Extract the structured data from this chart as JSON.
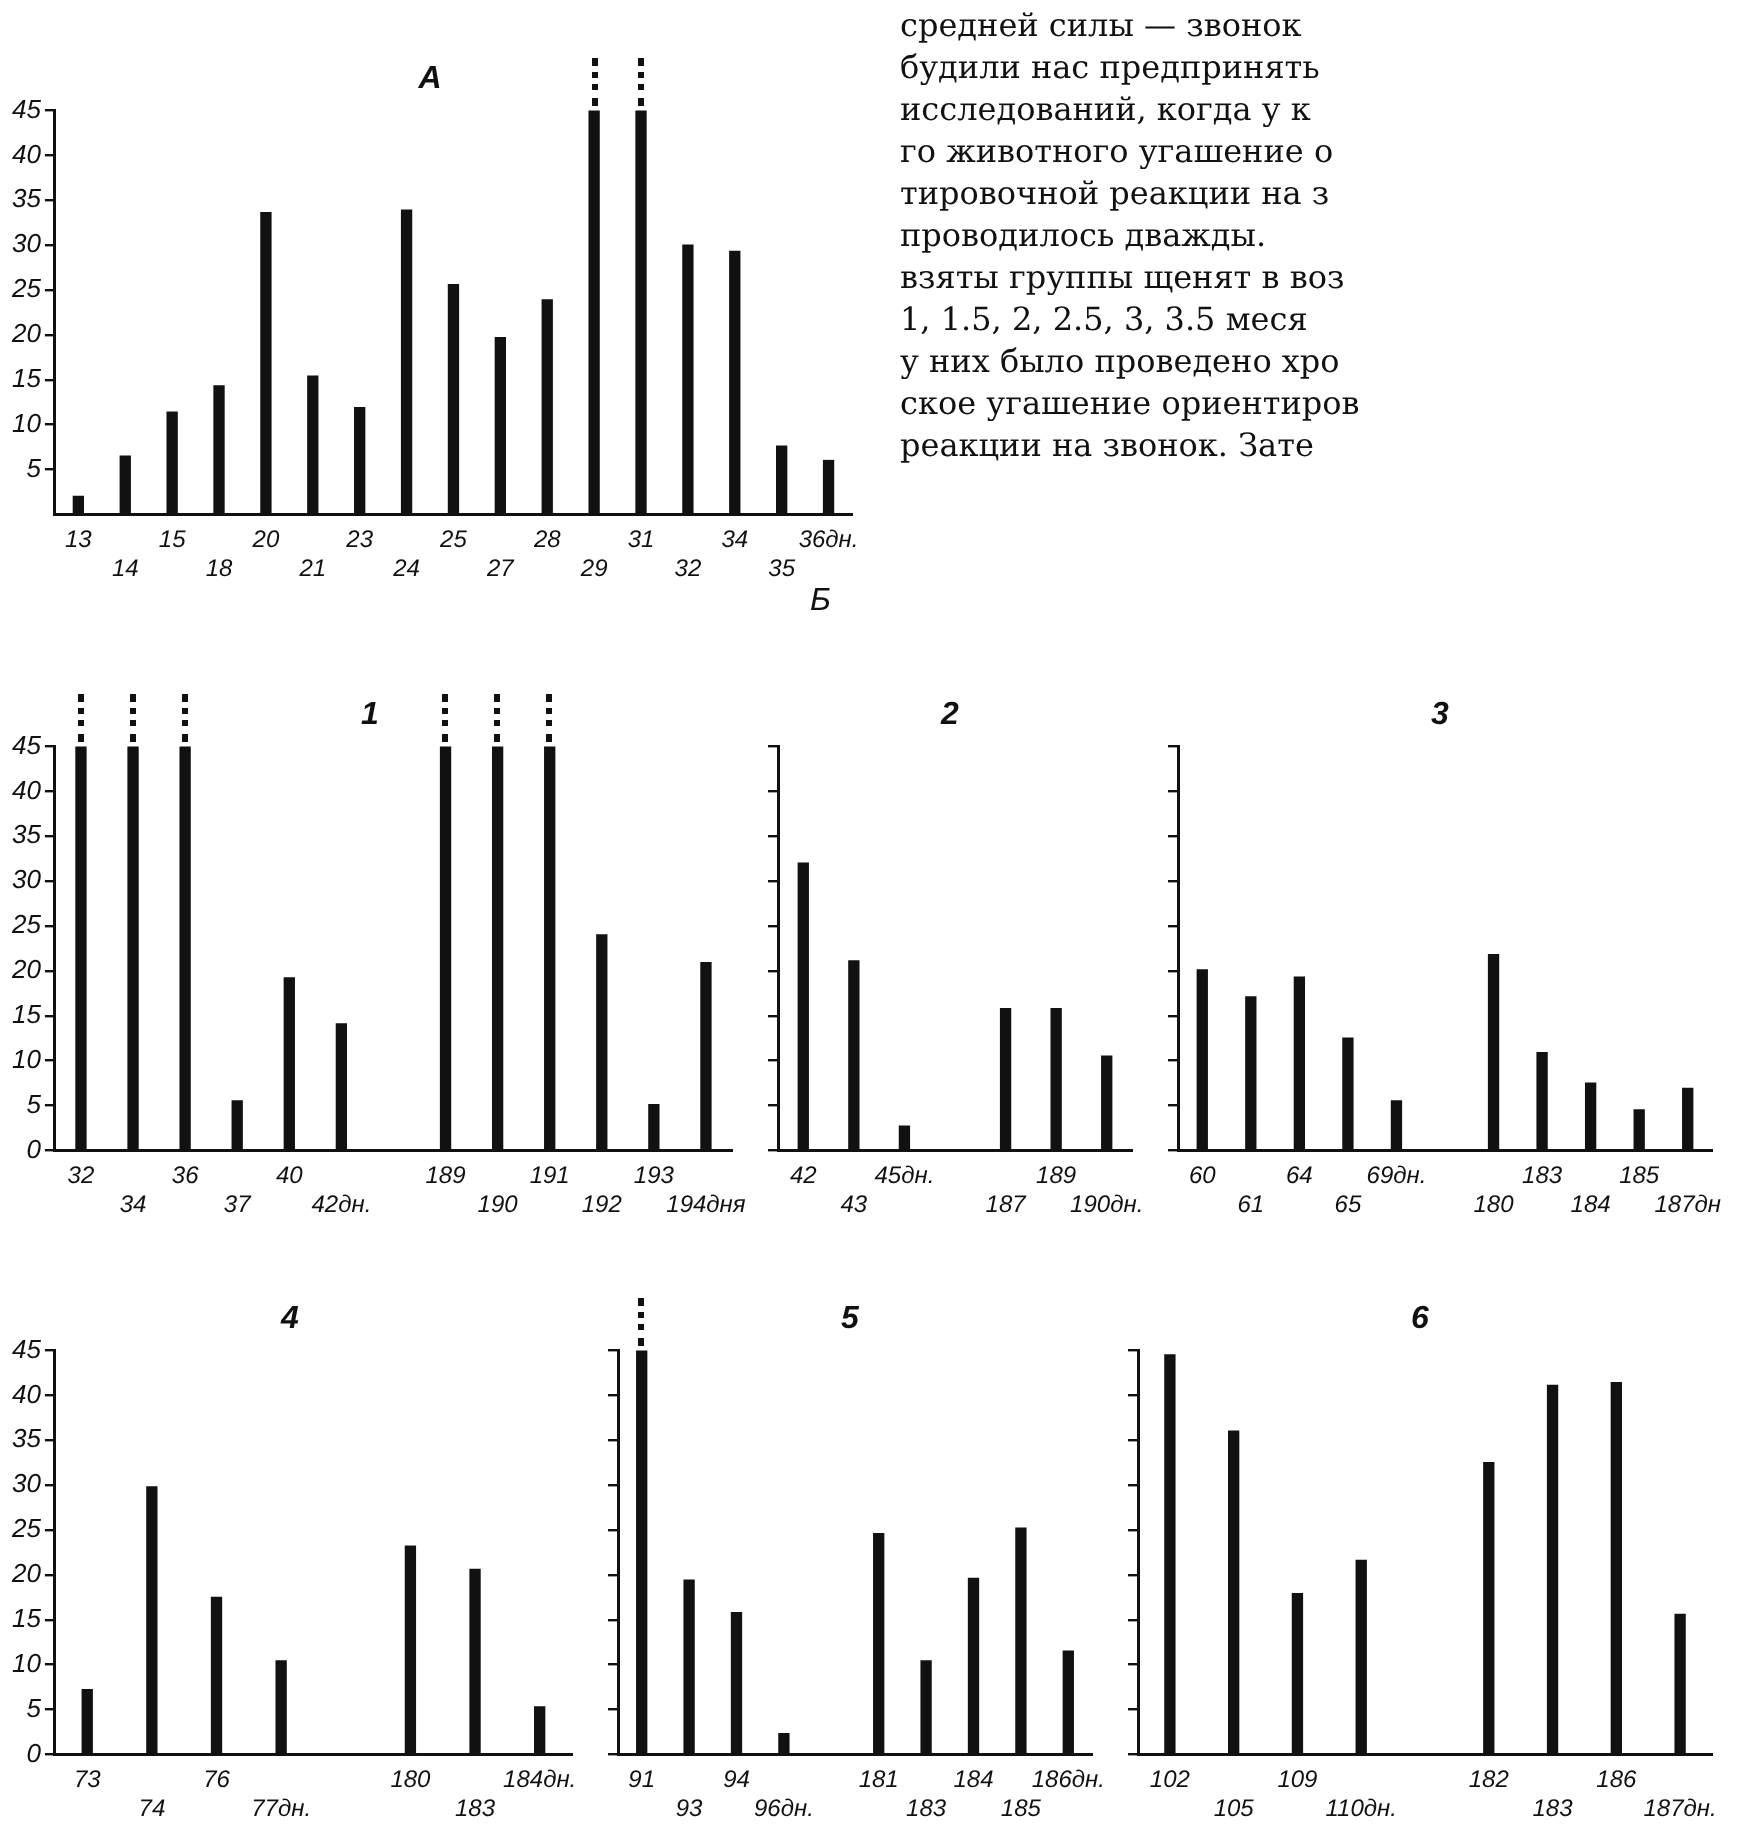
{
  "chart_data": [
    {
      "type": "bar",
      "title": "А",
      "categories": [
        "13",
        "14",
        "15",
        "18",
        "20",
        "21",
        "23",
        "24",
        "25",
        "27",
        "28",
        "29",
        "31",
        "32",
        "34",
        "35",
        "36дн."
      ],
      "values": [
        2,
        6.5,
        11.4,
        14.3,
        33.6,
        15.4,
        11.9,
        33.9,
        25.6,
        19.7,
        23.9,
        45,
        45,
        30,
        29.3,
        7.6,
        6
      ],
      "color": "#111111",
      "ylim": [
        0,
        45
      ],
      "yticks": [
        5,
        10,
        15,
        20,
        25,
        30,
        35,
        40,
        45
      ],
      "grid": false,
      "annotations": [
        "средней силы — звонок",
        "будили нас предпринять",
        "исследований, когда у к",
        "го животного угашение о",
        "тировочной реакции на з",
        "проводилось дважды.",
        "взяты группы щенят в воз",
        "1, 1.5, 2, 2.5, 3, 3.5 меся",
        "у них было проведено хро",
        "ское угашение ориентиров",
        "реакции на звонок. Зате"
      ]
    },
    {
      "type": "bar",
      "title": "1",
      "categories": [
        "32",
        "34",
        "36",
        "37",
        "40",
        "42дн.",
        null,
        "189",
        "190",
        "191",
        "192",
        "193",
        "194дня"
      ],
      "values": [
        45,
        45,
        45,
        5.5,
        19.2,
        14.1,
        null,
        45,
        45,
        45,
        24,
        5.1,
        20.9
      ],
      "color": "#111111",
      "ylim": [
        0,
        45
      ],
      "yticks": [
        0,
        5,
        10,
        15,
        20,
        25,
        30,
        35,
        40,
        45
      ],
      "grid": false,
      "annotations": [
        "Б"
      ]
    },
    {
      "type": "bar",
      "title": "2",
      "categories": [
        "42",
        "43",
        "45дн.",
        null,
        "187",
        "189",
        "190дн."
      ],
      "values": [
        32,
        21.1,
        2.7,
        null,
        15.8,
        15.8,
        10.5
      ],
      "color": "#111111",
      "ylim": [
        0,
        45
      ],
      "yticks": [
        {
          "value": 0,
          "label": null
        },
        {
          "value": 5,
          "label": null
        },
        {
          "value": 10,
          "label": null
        },
        {
          "value": 15,
          "label": null
        },
        {
          "value": 20,
          "label": null
        },
        {
          "value": 25,
          "label": null
        },
        {
          "value": 30,
          "label": null
        },
        {
          "value": 35,
          "label": null
        },
        {
          "value": 40,
          "label": null
        },
        {
          "value": 45,
          "label": null
        }
      ],
      "grid": false,
      "tick_labels": "x"
    },
    {
      "type": "bar",
      "title": "3",
      "categories": [
        "60",
        "61",
        "64",
        "65",
        "69дн.",
        null,
        "180",
        "183",
        "184",
        "185",
        "187дн"
      ],
      "values": [
        20.1,
        17.1,
        19.3,
        12.5,
        5.5,
        null,
        21.8,
        10.9,
        7.5,
        4.5,
        6.9
      ],
      "color": "#111111",
      "ylim": [
        0,
        45
      ],
      "yticks": [
        {
          "value": 0,
          "label": null
        },
        {
          "value": 5,
          "label": null
        },
        {
          "value": 10,
          "label": null
        },
        {
          "value": 15,
          "label": null
        },
        {
          "value": 20,
          "label": null
        },
        {
          "value": 25,
          "label": null
        },
        {
          "value": 30,
          "label": null
        },
        {
          "value": 35,
          "label": null
        },
        {
          "value": 40,
          "label": null
        },
        {
          "value": 45,
          "label": null
        }
      ],
      "grid": false,
      "tick_labels": "x"
    },
    {
      "type": "bar",
      "title": "4",
      "categories": [
        "73",
        "74",
        "76",
        "77дн.",
        null,
        "180",
        "183",
        "184дн."
      ],
      "values": [
        7.2,
        29.8,
        17.5,
        10.4,
        null,
        23.2,
        20.6,
        5.3
      ],
      "color": "#111111",
      "ylim": [
        0,
        45
      ],
      "yticks": [
        0,
        5,
        10,
        15,
        20,
        25,
        30,
        35,
        40,
        45
      ],
      "grid": false
    },
    {
      "type": "bar",
      "title": "5",
      "categories": [
        "91",
        "93",
        "94",
        "96дн.",
        null,
        "181",
        "183",
        "184",
        "185",
        "186дн."
      ],
      "values": [
        45,
        19.4,
        15.8,
        2.3,
        null,
        24.6,
        10.4,
        19.6,
        25.2,
        11.5
      ],
      "color": "#111111",
      "ylim": [
        0,
        45
      ],
      "yticks": [
        {
          "value": 0,
          "label": null
        },
        {
          "value": 5,
          "label": null
        },
        {
          "value": 10,
          "label": null
        },
        {
          "value": 15,
          "label": null
        },
        {
          "value": 20,
          "label": null
        },
        {
          "value": 25,
          "label": null
        },
        {
          "value": 30,
          "label": null
        },
        {
          "value": 35,
          "label": null
        },
        {
          "value": 40,
          "label": null
        },
        {
          "value": 45,
          "label": null
        }
      ],
      "grid": false,
      "tick_labels": "x"
    },
    {
      "type": "bar",
      "title": "6",
      "categories": [
        "102",
        "105",
        "109",
        "110дн.",
        null,
        "182",
        "183",
        "186",
        "187дн."
      ],
      "values": [
        44.5,
        36,
        17.9,
        21.6,
        null,
        32.5,
        41.1,
        41.4,
        15.6
      ],
      "color": "#111111",
      "ylim": [
        0,
        45
      ],
      "yticks": [
        {
          "value": 0,
          "label": null
        },
        {
          "value": 5,
          "label": null
        },
        {
          "value": 10,
          "label": null
        },
        {
          "value": 15,
          "label": null
        },
        {
          "value": 20,
          "label": null
        },
        {
          "value": 25,
          "label": null
        },
        {
          "value": 30,
          "label": null
        },
        {
          "value": 35,
          "label": null
        },
        {
          "value": 40,
          "label": null
        },
        {
          "value": 45,
          "label": null
        }
      ],
      "grid": false,
      "tick_labels": "x"
    }
  ]
}
